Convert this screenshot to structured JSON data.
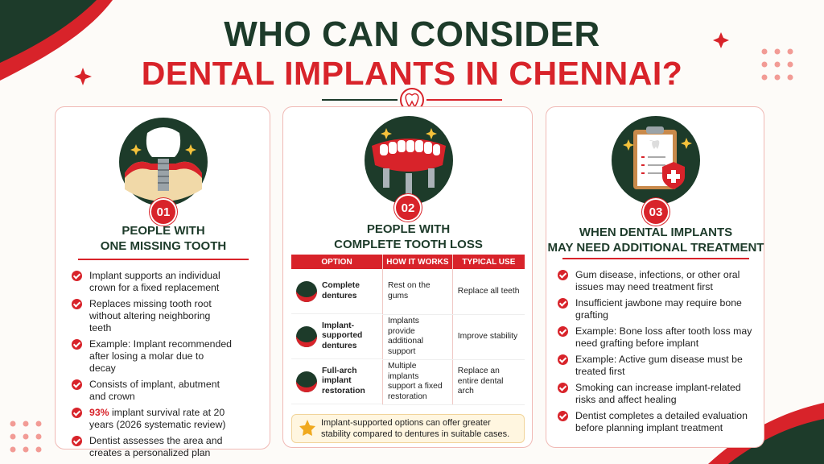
{
  "title": {
    "line1": "WHO CAN CONSIDER",
    "line2": "DENTAL IMPLANTS IN CHENNAI?"
  },
  "cards": [
    {
      "number": "01",
      "heading": [
        "PEOPLE WITH",
        "ONE MISSING TOOTH"
      ],
      "bullets": [
        {
          "text": "Implant supports an individual crown for a fixed replacement"
        },
        {
          "text": "Replaces missing tooth root without altering neighboring teeth"
        },
        {
          "text": "Example: Implant recommended after losing a molar due to decay"
        },
        {
          "text": "Consists of implant, abutment and crown"
        },
        {
          "highlight": "93%",
          "text": "implant survival rate at 20 years (2026 systematic review)"
        },
        {
          "text": "Dentist assesses the area and creates a personalized plan"
        }
      ]
    },
    {
      "number": "02",
      "heading": [
        "PEOPLE WITH",
        "COMPLETE TOOTH LOSS"
      ],
      "table": {
        "header": [
          "OPTION",
          "HOW IT WORKS",
          "TYPICAL USE"
        ],
        "rows": [
          [
            "Complete dentures",
            "Rest on the gums",
            "Replace all teeth"
          ],
          [
            "Implant-supported dentures",
            "Implants provide additional support",
            "Improve stability"
          ],
          [
            "Full-arch implant restoration",
            "Multiple implants support a fixed restoration",
            "Replace an entire dental arch"
          ]
        ]
      },
      "note": "Implant-supported options can offer greater stability compared to dentures in suitable cases."
    },
    {
      "number": "03",
      "heading": [
        "WHEN DENTAL IMPLANTS",
        "MAY NEED ADDITIONAL TREATMENT"
      ],
      "bullets": [
        {
          "text": "Gum disease, infections, or other oral issues may need treatment first"
        },
        {
          "text": "Insufficient jawbone may require bone grafting"
        },
        {
          "text": "Example: Bone loss after tooth loss may need grafting before implant"
        },
        {
          "text": "Example: Active gum disease must be treated first"
        },
        {
          "text": "Smoking can increase implant-related risks and affect healing"
        },
        {
          "text": "Dentist completes a detailed evaluation before planning implant treatment"
        }
      ]
    }
  ]
}
